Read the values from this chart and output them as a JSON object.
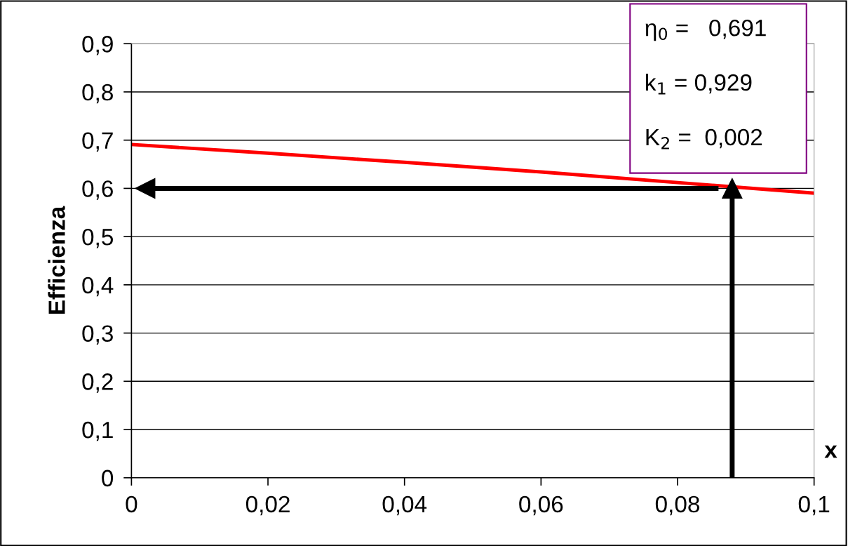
{
  "chart_data": {
    "type": "line",
    "ylabel": "Efficienza",
    "xlabel": "x",
    "x": [
      0,
      0.02,
      0.04,
      0.06,
      0.08,
      0.1
    ],
    "series": [
      {
        "color": "#ff0000",
        "values": [
          0.691,
          0.673,
          0.654,
          0.634,
          0.612,
          0.59
        ]
      },
      {
        "type": "line",
        "color": "#000000",
        "x": [
          0.088,
          0.088
        ],
        "values": [
          0,
          0.6
        ],
        "marker": "triangle"
      },
      {
        "type": "line",
        "color": "#000000",
        "x": [
          0.086,
          0.002
        ],
        "values": [
          0.6,
          0.6
        ],
        "marker": "triangle"
      }
    ],
    "xlim": [
      0,
      0.1
    ],
    "ylim": [
      0,
      0.9
    ],
    "xticks": [
      0,
      {
        "value": 0.02,
        "label": "0,02"
      },
      {
        "value": 0.04,
        "label": "0,04"
      },
      {
        "value": 0.06,
        "label": "0,06"
      },
      {
        "value": 0.08,
        "label": "0,08"
      },
      {
        "value": 0.1,
        "label": "0,1"
      }
    ],
    "yticks": [
      0,
      {
        "value": 0.1,
        "label": "0,1"
      },
      {
        "value": 0.2,
        "label": "0,2"
      },
      {
        "value": 0.3,
        "label": "0,3"
      },
      {
        "value": 0.4,
        "label": "0,4"
      },
      {
        "value": 0.5,
        "label": "0,5"
      },
      {
        "value": 0.6,
        "label": "0,6"
      },
      {
        "value": 0.7,
        "label": "0,7"
      },
      {
        "value": 0.8,
        "label": "0,8"
      },
      {
        "value": 0.9,
        "label": "0,9"
      }
    ],
    "grid": "y",
    "line_style": "solid",
    "annotations": [
      "η$_{0}$ =   0,691",
      "k$_{1}$ = 0,929",
      "K$_{2}$ =  0,002"
    ]
  }
}
